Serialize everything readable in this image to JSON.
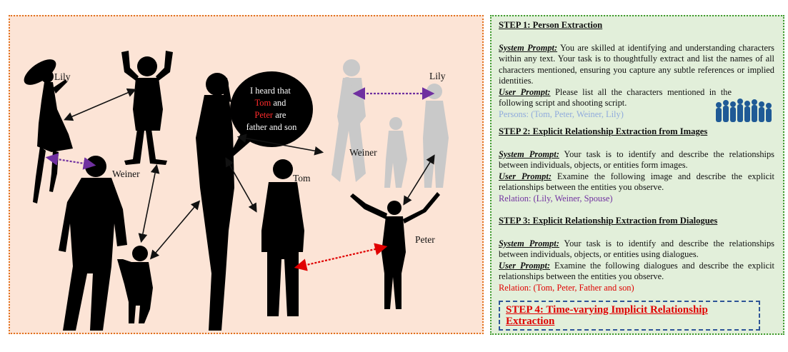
{
  "scene": {
    "names": {
      "lily_left": "Lily",
      "weiner_left": "Weiner",
      "tom": "Tom",
      "lily_right": "Lily",
      "weiner_right": "Weiner",
      "peter": "Peter"
    },
    "speech": {
      "line1": "I heard that",
      "tom": "Tom",
      "and": " and",
      "peter": "Peter",
      "are": " are",
      "line4": "father and son"
    }
  },
  "steps": [
    {
      "title": "STEP 1: Person Extraction",
      "system_label": "System Prompt:",
      "system_text": " You are skilled at identifying and understanding characters within any text. Your task is to thoughtfully extract and list the names of all characters mentioned, ensuring you capture any subtle references or implied identities.",
      "user_label": "User Prompt:",
      "user_text": " Please list all the characters mentioned in the following script and shooting script.",
      "result": "Persons: (Tom, Peter, Weiner, Lily)"
    },
    {
      "title": "STEP 2: Explicit Relationship Extraction from Images",
      "system_label": "System Prompt:",
      "system_text": " Your task is to identify and describe the relationships between individuals, objects, or entities form images.",
      "user_label": "User Prompt:",
      "user_text": " Examine the following image and describe the explicit relationships between the entities you observe.",
      "result": "Relation: (Lily, Weiner, Spouse)"
    },
    {
      "title": "STEP 3: Explicit Relationship Extraction from Dialogues",
      "system_label": "System Prompt:",
      "system_text": " Your task is to identify and describe the relationships between individuals, objects, or entities using dialogues.",
      "user_label": "User Prompt:",
      "user_text": " Examine the following dialogues and describe the explicit relationships between the entities you observe.",
      "result": "Relation: (Tom, Peter, Father and son)"
    }
  ],
  "step4": "STEP 4: Time-varying Implicit Relationship Extraction",
  "colors": {
    "scene_bg": "#fce4d6",
    "panel_bg": "#e2efda",
    "persons_result": "#8faadc",
    "spouse_relation": "#7030a0",
    "father_son_relation": "#e00000",
    "step4_border": "#2e5597"
  }
}
